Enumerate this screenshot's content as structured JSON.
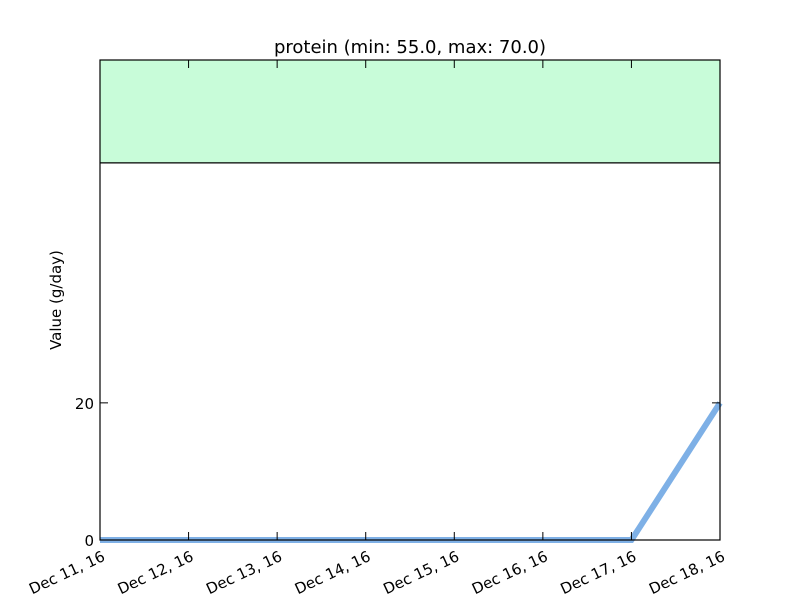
{
  "chart_data": {
    "type": "line",
    "title": "protein (min: 55.0, max: 70.0)",
    "xlabel": "",
    "ylabel": "Value (g/day)",
    "x_ticks": [
      "Dec 11, 16",
      "Dec 12, 16",
      "Dec 13, 16",
      "Dec 14, 16",
      "Dec 15, 16",
      "Dec 16, 16",
      "Dec 17, 16",
      "Dec 18, 16"
    ],
    "y_ticks": [
      0,
      20
    ],
    "y_tick_labels": [
      "0",
      "20"
    ],
    "ylim": [
      0,
      70
    ],
    "target_band": {
      "min": 55.0,
      "max": 70.0
    },
    "series": [
      {
        "values": [
          0,
          0,
          0,
          0,
          0,
          0,
          0,
          20
        ]
      }
    ],
    "colors": {
      "line": "#7eb0e6",
      "band": "#c8fcd9"
    },
    "grid": false,
    "legend": "none"
  }
}
